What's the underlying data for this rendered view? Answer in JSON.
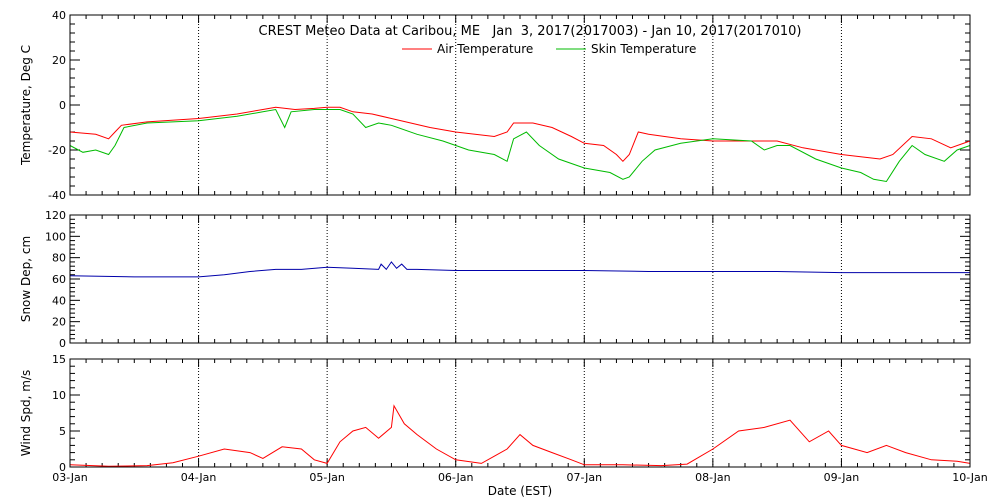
{
  "chart_data": {
    "type": "line",
    "title": "CREST Meteo Data at Caribou, ME   Jan  3, 2017(2017003) - Jan 10, 2017(2017010)",
    "xlabel": "Date (EST)",
    "x_tick_labels": [
      "03-Jan",
      "04-Jan",
      "05-Jan",
      "06-Jan",
      "07-Jan",
      "08-Jan",
      "09-Jan",
      "10-Jan"
    ],
    "xlim_days": [
      0,
      7
    ],
    "grid": "dotted vertical at day boundaries",
    "legend_placement": "top-center (inside top panel)",
    "panels": [
      {
        "ylabel": "Temperature, Deg C",
        "ylim": [
          -40,
          40
        ],
        "yticks": [
          -40,
          -20,
          0,
          20,
          40
        ],
        "series": [
          {
            "name": "Air Temperature",
            "color": "#ff0000",
            "points": [
              [
                0,
                -12
              ],
              [
                0.2,
                -13
              ],
              [
                0.3,
                -15
              ],
              [
                0.35,
                -12
              ],
              [
                0.4,
                -9
              ],
              [
                0.6,
                -7.5
              ],
              [
                1.0,
                -6
              ],
              [
                1.3,
                -4
              ],
              [
                1.5,
                -2
              ],
              [
                1.6,
                -1
              ],
              [
                1.75,
                -2
              ],
              [
                1.9,
                -1.5
              ],
              [
                2.0,
                -1
              ],
              [
                2.1,
                -1
              ],
              [
                2.2,
                -3
              ],
              [
                2.35,
                -4
              ],
              [
                2.5,
                -6
              ],
              [
                2.8,
                -10
              ],
              [
                3.0,
                -12
              ],
              [
                3.3,
                -14
              ],
              [
                3.4,
                -12
              ],
              [
                3.45,
                -8
              ],
              [
                3.6,
                -8
              ],
              [
                3.75,
                -10
              ],
              [
                3.9,
                -14
              ],
              [
                4.0,
                -17
              ],
              [
                4.15,
                -18
              ],
              [
                4.25,
                -22
              ],
              [
                4.3,
                -25
              ],
              [
                4.35,
                -22
              ],
              [
                4.42,
                -12
              ],
              [
                4.5,
                -13
              ],
              [
                4.75,
                -15
              ],
              [
                5.0,
                -16
              ],
              [
                5.3,
                -16
              ],
              [
                5.5,
                -16
              ],
              [
                5.7,
                -19
              ],
              [
                6.0,
                -22
              ],
              [
                6.15,
                -23
              ],
              [
                6.3,
                -24
              ],
              [
                6.4,
                -22
              ],
              [
                6.55,
                -14
              ],
              [
                6.7,
                -15
              ],
              [
                6.85,
                -19
              ],
              [
                7.0,
                -16
              ]
            ]
          },
          {
            "name": "Skin Temperature",
            "color": "#00bb00",
            "points": [
              [
                0,
                -18
              ],
              [
                0.1,
                -21
              ],
              [
                0.2,
                -20
              ],
              [
                0.3,
                -22
              ],
              [
                0.35,
                -18
              ],
              [
                0.42,
                -10
              ],
              [
                0.6,
                -8
              ],
              [
                1.0,
                -7
              ],
              [
                1.3,
                -5
              ],
              [
                1.5,
                -3
              ],
              [
                1.6,
                -2
              ],
              [
                1.67,
                -10
              ],
              [
                1.72,
                -3
              ],
              [
                1.9,
                -2
              ],
              [
                2.0,
                -2
              ],
              [
                2.1,
                -2
              ],
              [
                2.2,
                -4
              ],
              [
                2.3,
                -10
              ],
              [
                2.4,
                -8
              ],
              [
                2.5,
                -9
              ],
              [
                2.7,
                -13
              ],
              [
                2.9,
                -16
              ],
              [
                3.1,
                -20
              ],
              [
                3.3,
                -22
              ],
              [
                3.4,
                -25
              ],
              [
                3.45,
                -15
              ],
              [
                3.55,
                -12
              ],
              [
                3.65,
                -18
              ],
              [
                3.8,
                -24
              ],
              [
                4.0,
                -28
              ],
              [
                4.2,
                -30
              ],
              [
                4.3,
                -33
              ],
              [
                4.35,
                -32
              ],
              [
                4.45,
                -25
              ],
              [
                4.55,
                -20
              ],
              [
                4.75,
                -17
              ],
              [
                5.0,
                -15
              ],
              [
                5.3,
                -16
              ],
              [
                5.4,
                -20
              ],
              [
                5.5,
                -18
              ],
              [
                5.6,
                -18
              ],
              [
                5.8,
                -24
              ],
              [
                6.0,
                -28
              ],
              [
                6.15,
                -30
              ],
              [
                6.25,
                -33
              ],
              [
                6.35,
                -34
              ],
              [
                6.45,
                -25
              ],
              [
                6.55,
                -18
              ],
              [
                6.65,
                -22
              ],
              [
                6.8,
                -25
              ],
              [
                6.9,
                -20
              ],
              [
                7.0,
                -18
              ]
            ]
          }
        ]
      },
      {
        "ylabel": "Snow Dep, cm",
        "ylim": [
          0,
          120
        ],
        "yticks": [
          0,
          20,
          40,
          60,
          80,
          100,
          120
        ],
        "series": [
          {
            "name": "",
            "color": "#0000aa",
            "points": [
              [
                0,
                63
              ],
              [
                0.5,
                62
              ],
              [
                1.0,
                62
              ],
              [
                1.2,
                64
              ],
              [
                1.4,
                67
              ],
              [
                1.6,
                69
              ],
              [
                1.8,
                69
              ],
              [
                2.0,
                71
              ],
              [
                2.2,
                70
              ],
              [
                2.4,
                69
              ],
              [
                2.42,
                74
              ],
              [
                2.46,
                69
              ],
              [
                2.5,
                76
              ],
              [
                2.54,
                70
              ],
              [
                2.58,
                74
              ],
              [
                2.62,
                69
              ],
              [
                2.7,
                69
              ],
              [
                3.0,
                68
              ],
              [
                3.5,
                68
              ],
              [
                4.0,
                68
              ],
              [
                4.5,
                67
              ],
              [
                5.0,
                67
              ],
              [
                5.5,
                67
              ],
              [
                6.0,
                66
              ],
              [
                6.5,
                66
              ],
              [
                7.0,
                66
              ]
            ]
          }
        ]
      },
      {
        "ylabel": "Wind Spd, m/s",
        "ylim": [
          0,
          15
        ],
        "yticks": [
          0,
          5,
          10,
          15
        ],
        "series": [
          {
            "name": "",
            "color": "#ff0000",
            "points": [
              [
                0,
                0.3
              ],
              [
                0.3,
                0.1
              ],
              [
                0.6,
                0.2
              ],
              [
                0.8,
                0.6
              ],
              [
                1.0,
                1.5
              ],
              [
                1.2,
                2.5
              ],
              [
                1.4,
                2.0
              ],
              [
                1.5,
                1.2
              ],
              [
                1.65,
                2.8
              ],
              [
                1.8,
                2.5
              ],
              [
                1.9,
                1.0
              ],
              [
                2.0,
                0.5
              ],
              [
                2.1,
                3.5
              ],
              [
                2.2,
                5.0
              ],
              [
                2.3,
                5.5
              ],
              [
                2.4,
                4.0
              ],
              [
                2.5,
                5.5
              ],
              [
                2.52,
                8.5
              ],
              [
                2.6,
                6.0
              ],
              [
                2.7,
                4.5
              ],
              [
                2.85,
                2.5
              ],
              [
                3.0,
                1.0
              ],
              [
                3.2,
                0.5
              ],
              [
                3.3,
                1.5
              ],
              [
                3.4,
                2.5
              ],
              [
                3.5,
                4.5
              ],
              [
                3.6,
                3.0
              ],
              [
                3.75,
                2.0
              ],
              [
                3.9,
                1.0
              ],
              [
                4.0,
                0.3
              ],
              [
                4.3,
                0.3
              ],
              [
                4.6,
                0.2
              ],
              [
                4.8,
                0.4
              ],
              [
                5.0,
                2.5
              ],
              [
                5.2,
                5.0
              ],
              [
                5.4,
                5.5
              ],
              [
                5.6,
                6.5
              ],
              [
                5.75,
                3.5
              ],
              [
                5.9,
                5.0
              ],
              [
                6.0,
                3.0
              ],
              [
                6.2,
                2.0
              ],
              [
                6.35,
                3.0
              ],
              [
                6.5,
                2.0
              ],
              [
                6.7,
                1.0
              ],
              [
                6.9,
                0.8
              ],
              [
                7.0,
                0.5
              ]
            ]
          }
        ]
      }
    ]
  }
}
